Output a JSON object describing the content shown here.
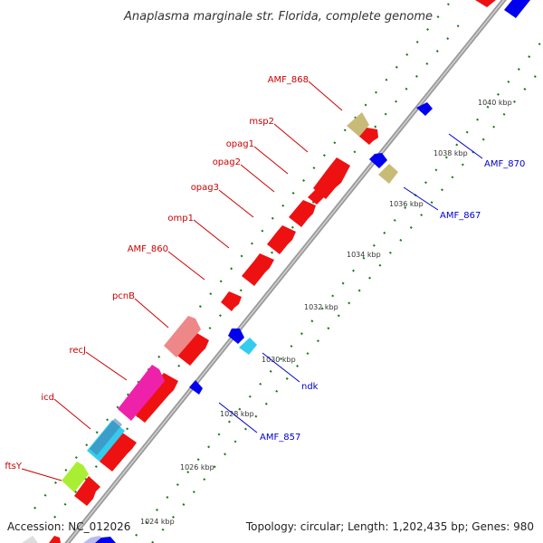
{
  "title": "Anaplasma marginale str. Florida, complete genome",
  "footer": {
    "accession": "Accession: NC_012026",
    "summary": "Topology: circular; Length: 1,202,435 bp; Genes: 980"
  },
  "colors": {
    "forward_label": "#cc0000",
    "reverse_label": "#0000cc",
    "backbone": "#9a9a9a",
    "ticks": "#1f7a1f"
  },
  "scale_ticks": [
    "1024 kbp",
    "1026 kbp",
    "1028 kbp",
    "1030 kbp",
    "1032 kbp",
    "1034 kbp",
    "1036 kbp",
    "1038 kbp",
    "1040 kbp"
  ],
  "features_forward": [
    {
      "label": "ftsY",
      "color": "#aaee33"
    },
    {
      "label": "icd",
      "color": "#33ccee"
    },
    {
      "label": "recJ",
      "color": "#ee22aa"
    },
    {
      "label": "pcnB",
      "color": "#ee8888"
    },
    {
      "label": "AMF_860",
      "color": "#ee1111"
    },
    {
      "label": "omp1",
      "color": "#ee1111"
    },
    {
      "label": "opag3",
      "color": "#ee1111"
    },
    {
      "label": "opag2",
      "color": "#ee1111"
    },
    {
      "label": "opag1",
      "color": "#ee1111"
    },
    {
      "label": "msp2",
      "color": "#ee1111"
    },
    {
      "label": "AMF_868",
      "color": "#c8bb77"
    }
  ],
  "features_reverse": [
    {
      "label": "AMF_857",
      "color": "#0000ee"
    },
    {
      "label": "ndk",
      "color": "#33ccee"
    },
    {
      "label": "AMF_867",
      "color": "#c8bb77"
    },
    {
      "label": "AMF_870",
      "color": "#0000ee"
    }
  ]
}
